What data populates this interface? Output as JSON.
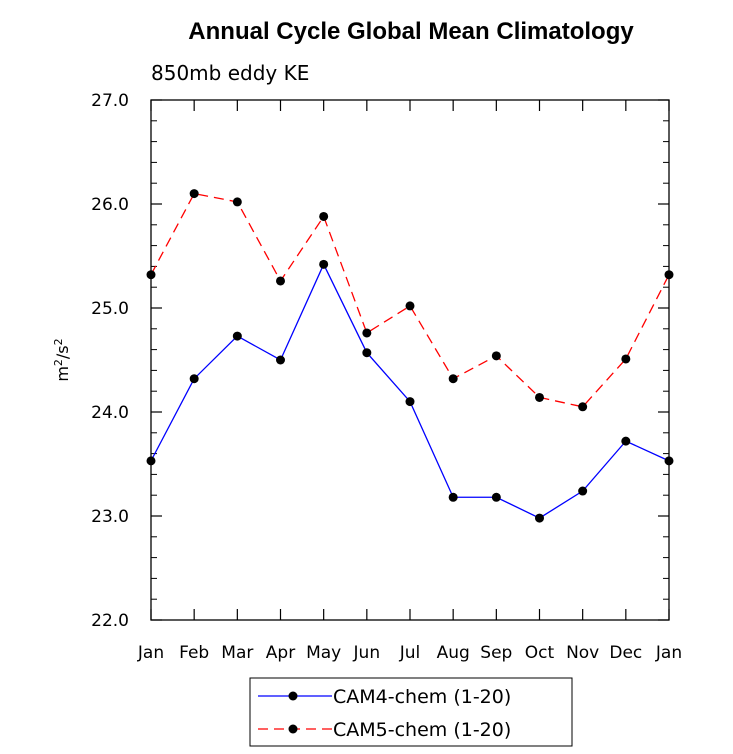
{
  "chart_data": {
    "type": "line",
    "title": "Annual Cycle Global Mean Climatology",
    "subtitle": "850mb eddy KE",
    "xlabel": "",
    "ylabel_base": "m",
    "ylabel_sup1": "2",
    "ylabel_mid": "/s",
    "ylabel_sup2": "2",
    "categories": [
      "Jan",
      "Feb",
      "Mar",
      "Apr",
      "May",
      "Jun",
      "Jul",
      "Aug",
      "Sep",
      "Oct",
      "Nov",
      "Dec",
      "Jan"
    ],
    "ylim": [
      22.0,
      27.0
    ],
    "yticks": [
      22.0,
      23.0,
      24.0,
      25.0,
      26.0,
      27.0
    ],
    "ytick_labels": [
      "22.0",
      "23.0",
      "24.0",
      "25.0",
      "26.0",
      "27.0"
    ],
    "series": [
      {
        "name": "CAM4-chem (1-20)",
        "color": "#0000ff",
        "dash": "solid",
        "values": [
          23.53,
          24.32,
          24.73,
          24.5,
          25.42,
          24.57,
          24.1,
          23.18,
          23.18,
          22.98,
          23.24,
          23.72,
          23.53
        ]
      },
      {
        "name": "CAM5-chem (1-20)",
        "color": "#ff0000",
        "dash": "dashed",
        "values": [
          25.32,
          26.1,
          26.02,
          25.26,
          25.88,
          24.76,
          25.02,
          24.32,
          24.54,
          24.14,
          24.05,
          24.51,
          25.32
        ]
      }
    ]
  },
  "legend": {
    "entries": [
      "CAM4-chem (1-20)",
      "CAM5-chem (1-20)"
    ]
  },
  "colors": {
    "marker": "#000000",
    "axis": "#000000"
  }
}
